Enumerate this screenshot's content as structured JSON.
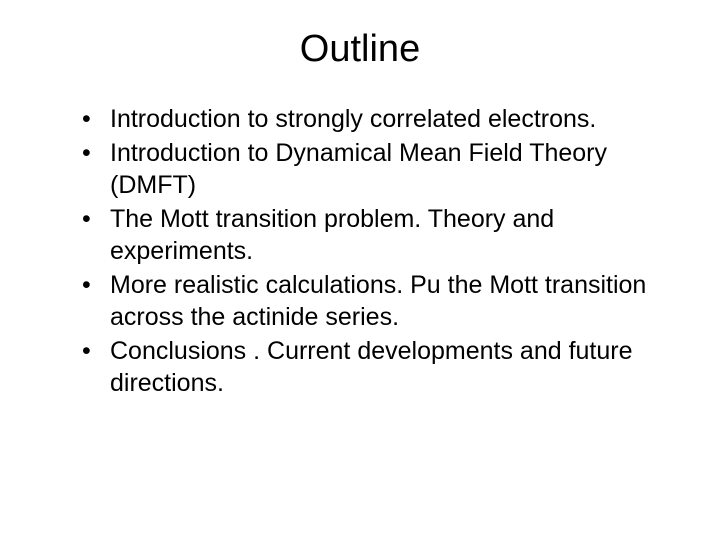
{
  "slide": {
    "title": "Outline",
    "bullets": [
      "Introduction to strongly correlated electrons.",
      "Introduction to Dynamical Mean Field Theory (DMFT)",
      "The Mott transition problem.  Theory  and experiments.",
      "More realistic calculations. Pu the Mott transition across the actinide series.",
      "Conclusions . Current developments and future directions."
    ],
    "background_color": "#ffffff",
    "text_color": "#000000",
    "title_fontsize": 38,
    "body_fontsize": 25,
    "font_family": "Arial"
  }
}
